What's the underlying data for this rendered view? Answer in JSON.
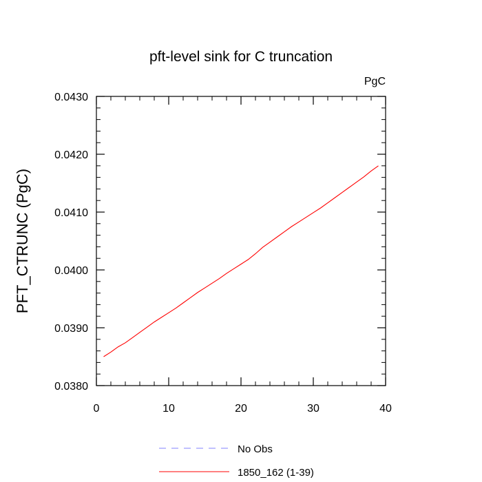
{
  "chart_data": {
    "type": "line",
    "title": "pft-level sink for C truncation",
    "units_label": "PgC",
    "xlabel": "",
    "ylabel": "PFT_CTRUNC  (PgC)",
    "xlim": [
      0,
      40
    ],
    "ylim": [
      0.038,
      0.043
    ],
    "x_ticks": [
      0,
      10,
      20,
      30,
      40
    ],
    "x_tick_labels": [
      "0",
      "10",
      "20",
      "30",
      "40"
    ],
    "y_ticks": [
      0.038,
      0.039,
      0.04,
      0.041,
      0.042,
      0.043
    ],
    "y_tick_labels": [
      "0.0380",
      "0.0390",
      "0.0400",
      "0.0410",
      "0.0420",
      "0.0430"
    ],
    "grid": false,
    "legend_position": "bottom",
    "series": [
      {
        "name": "No Obs",
        "color": "#8080ff",
        "dash": "dashed",
        "x": [],
        "values": []
      },
      {
        "name": "1850_162 (1-39)",
        "color": "#ff0000",
        "dash": "solid",
        "x": [
          1,
          2,
          3,
          4,
          5,
          6,
          7,
          8,
          9,
          10,
          11,
          12,
          13,
          14,
          15,
          16,
          17,
          18,
          19,
          20,
          21,
          22,
          23,
          24,
          25,
          26,
          27,
          28,
          29,
          30,
          31,
          32,
          33,
          34,
          35,
          36,
          37,
          38,
          39
        ],
        "values": [
          0.0385,
          0.03858,
          0.03867,
          0.03874,
          0.03883,
          0.03892,
          0.03901,
          0.0391,
          0.03918,
          0.03926,
          0.03934,
          0.03943,
          0.03952,
          0.03961,
          0.03969,
          0.03977,
          0.03985,
          0.03994,
          0.04002,
          0.0401,
          0.04018,
          0.04028,
          0.04039,
          0.04048,
          0.04057,
          0.04066,
          0.04075,
          0.04083,
          0.04091,
          0.04099,
          0.04107,
          0.04116,
          0.04125,
          0.04134,
          0.04143,
          0.04152,
          0.04161,
          0.04171,
          0.0418
        ]
      }
    ]
  }
}
